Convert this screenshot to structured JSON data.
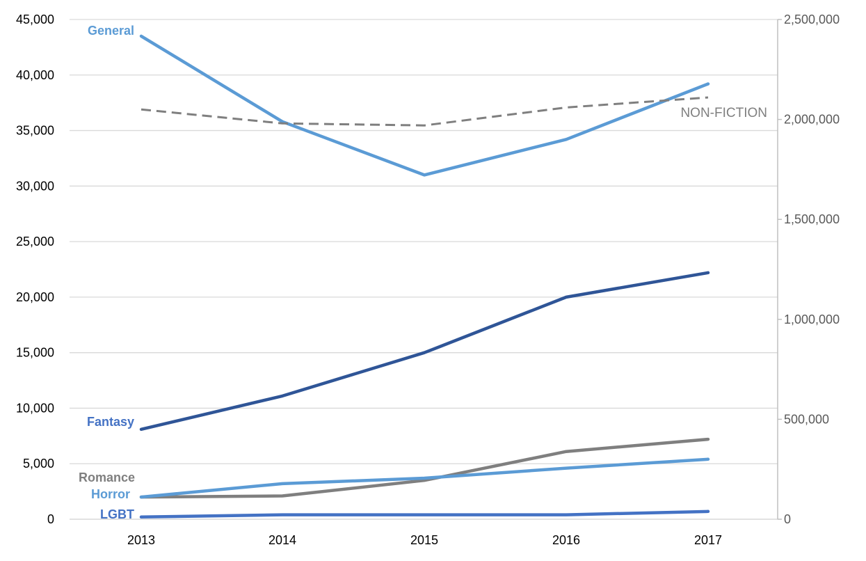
{
  "chart_data": {
    "type": "line",
    "categories": [
      "2013",
      "2014",
      "2015",
      "2016",
      "2017"
    ],
    "y_left": {
      "range": [
        0,
        45000
      ],
      "ticks": [
        0,
        5000,
        10000,
        15000,
        20000,
        25000,
        30000,
        35000,
        40000,
        45000
      ],
      "tick_labels": [
        "0",
        "5,000",
        "10,000",
        "15,000",
        "20,000",
        "25,000",
        "30,000",
        "35,000",
        "40,000",
        "45,000"
      ]
    },
    "y_right": {
      "range": [
        0,
        2500000
      ],
      "ticks": [
        0,
        500000,
        1000000,
        1500000,
        2000000,
        2500000
      ],
      "tick_labels": [
        "0",
        "500,000",
        "1,000,000",
        "1,500,000",
        "2,000,000",
        "2,500,000"
      ]
    },
    "grid": true,
    "series": [
      {
        "name": "General",
        "axis": "left",
        "color": "#5b9bd5",
        "dashed": false,
        "values": [
          43500,
          35800,
          31000,
          34200,
          39200
        ]
      },
      {
        "name": "Fantasy",
        "axis": "left",
        "color": "#2f5597",
        "dashed": false,
        "values": [
          8100,
          11100,
          15000,
          20000,
          22200
        ]
      },
      {
        "name": "Romance",
        "axis": "left",
        "color": "#7f7f7f",
        "dashed": false,
        "values": [
          2000,
          2100,
          3500,
          6100,
          7200
        ]
      },
      {
        "name": "Horror",
        "axis": "left",
        "color": "#5b9bd5",
        "dashed": false,
        "values": [
          2000,
          3200,
          3700,
          4600,
          5400
        ]
      },
      {
        "name": "LGBT",
        "axis": "left",
        "color": "#4472c4",
        "dashed": false,
        "values": [
          200,
          400,
          400,
          400,
          700
        ]
      },
      {
        "name": "NON-FICTION",
        "axis": "right",
        "color": "#7f7f7f",
        "dashed": true,
        "values": [
          2050000,
          1980000,
          1970000,
          2060000,
          2110000
        ]
      }
    ]
  }
}
